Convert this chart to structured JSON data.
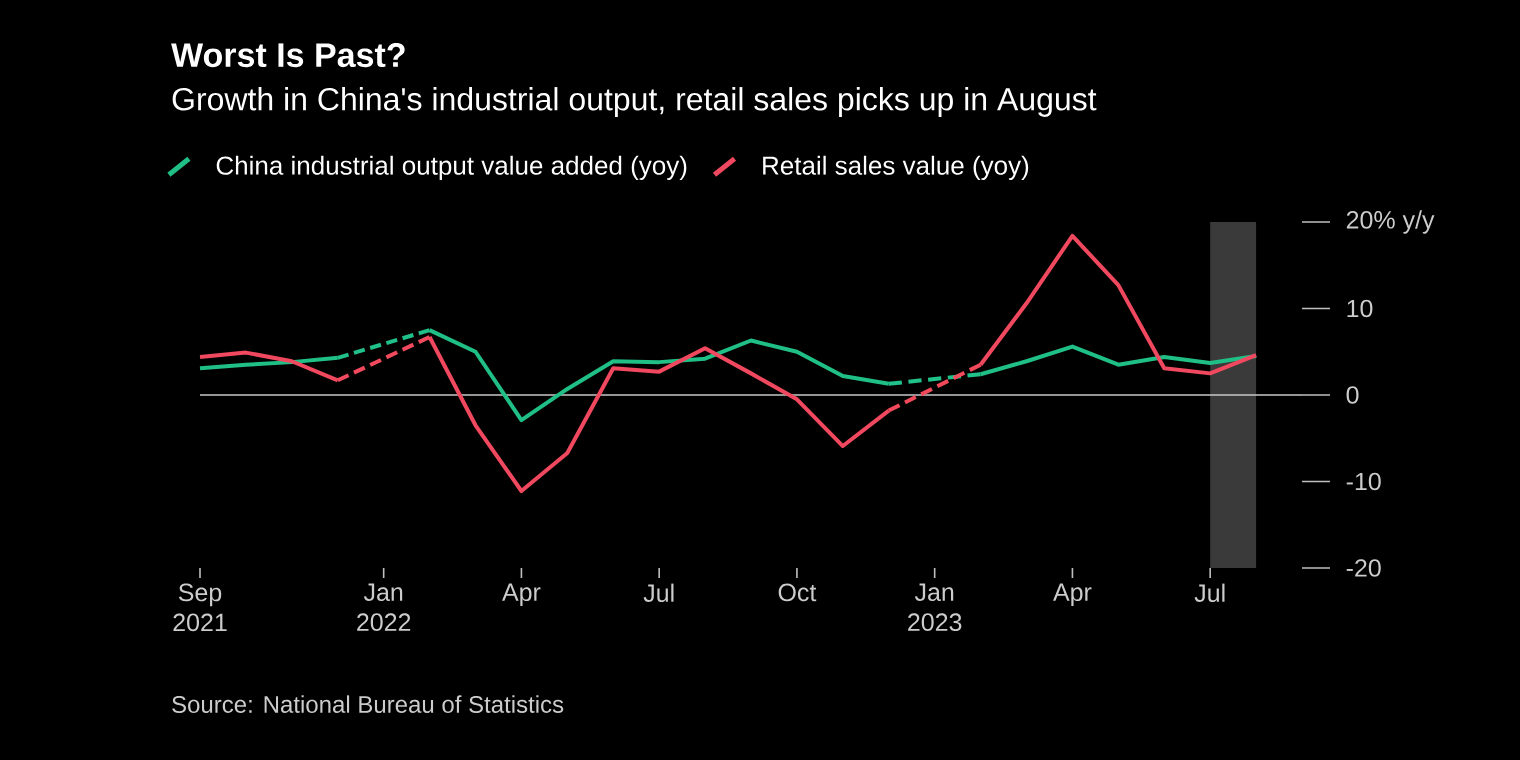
{
  "chart_data": {
    "type": "line",
    "title": "Worst Is Past?",
    "subtitle": "Growth in China's industrial output, retail sales picks up in August",
    "x": [
      "2021-09",
      "2021-10",
      "2021-11",
      "2021-12",
      "2022-01",
      "2022-02",
      "2022-03",
      "2022-04",
      "2022-05",
      "2022-06",
      "2022-07",
      "2022-08",
      "2022-09",
      "2022-10",
      "2022-11",
      "2022-12",
      "2023-01",
      "2023-02",
      "2023-03",
      "2023-04",
      "2023-05",
      "2023-06",
      "2023-07",
      "2023-08"
    ],
    "series": [
      {
        "name": "China industrial output value added (yoy)",
        "color": "#1fbf86",
        "values": [
          3.1,
          3.5,
          3.8,
          4.3,
          null,
          7.5,
          5.0,
          -2.9,
          0.7,
          3.9,
          3.8,
          4.2,
          6.3,
          5.0,
          2.2,
          1.3,
          null,
          2.4,
          3.9,
          5.6,
          3.5,
          4.4,
          3.7,
          4.5
        ]
      },
      {
        "name": "Retail sales value (yoy)",
        "color": "#f0485f",
        "values": [
          4.4,
          4.9,
          3.9,
          1.7,
          null,
          6.7,
          -3.5,
          -11.1,
          -6.7,
          3.1,
          2.7,
          5.4,
          2.5,
          -0.5,
          -5.9,
          -1.8,
          null,
          3.5,
          10.6,
          18.4,
          12.7,
          3.1,
          2.5,
          4.6
        ]
      },
      {
        "color": "#20c088",
        "line_style": "dashed",
        "x": [
          "2021-12",
          "2022-02"
        ],
        "values": [
          4.3,
          7.5
        ]
      },
      {
        "color": "#21c18a",
        "line_style": "dashed",
        "x": [
          "2022-12",
          "2023-02"
        ],
        "values": [
          1.3,
          2.4
        ]
      },
      {
        "color": "#f1495d",
        "line_style": "dashed",
        "x": [
          "2021-12",
          "2022-02"
        ],
        "values": [
          1.7,
          6.7
        ]
      },
      {
        "color": "#f24a5b",
        "line_style": "dashed",
        "x": [
          "2022-12",
          "2023-02"
        ],
        "values": [
          -1.8,
          3.5
        ]
      }
    ],
    "xlim": [
      "2021-09",
      "2023-09"
    ],
    "xticks": [
      {
        "value": "2021-09",
        "label": "Sep 2021"
      },
      {
        "value": "2022-01",
        "label": "Jan 2022"
      },
      {
        "value": "2022-04",
        "label": "Apr"
      },
      {
        "value": "2022-07",
        "label": "Jul"
      },
      {
        "value": "2022-10",
        "label": "Oct"
      },
      {
        "value": "2023-01",
        "label": "Jan 2023"
      },
      {
        "value": "2023-04",
        "label": "Apr"
      },
      {
        "value": "2023-07",
        "label": "Jul"
      }
    ],
    "ylim": [
      -20,
      20
    ],
    "yticks": [
      {
        "value": 20,
        "label": "20% y/y"
      },
      10,
      0,
      -10,
      -20
    ],
    "ref_lines": [
      {
        "axis": "y",
        "value": 0,
        "color": "#c8c8c8"
      }
    ],
    "bands": [
      {
        "axis": "x",
        "from": "2023-07",
        "to": "2023-08",
        "color": "#3a3a3a"
      }
    ],
    "annotations": [
      "Source: National Bureau of Statistics"
    ],
    "legend": "top left",
    "grid": false,
    "marker": "none",
    "line_style": "solid"
  }
}
